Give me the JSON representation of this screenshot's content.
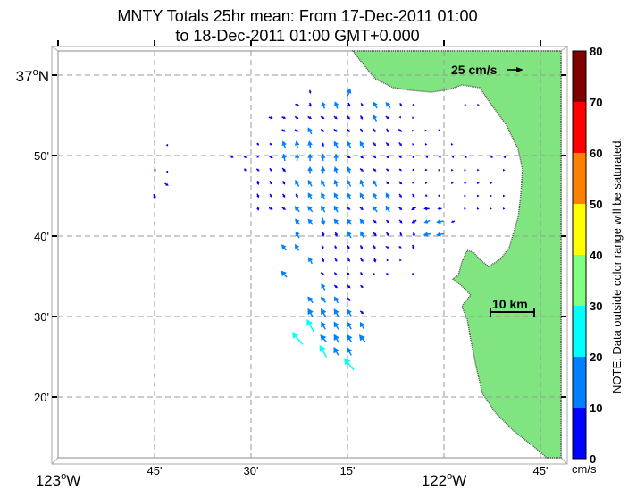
{
  "title": {
    "line1": "MNTY Totals 25hr mean: From 17-Dec-2011 01:00",
    "line2": "to 18-Dec-2011 01:00 GMT+0.000"
  },
  "axes": {
    "x_ticks": [
      {
        "lon_min": 0,
        "label": "123",
        "suffix": "W",
        "major": true
      },
      {
        "lon_min": 15,
        "label": "45'",
        "major": false
      },
      {
        "lon_min": 30,
        "label": "30'",
        "major": false
      },
      {
        "lon_min": 45,
        "label": "15'",
        "major": false
      },
      {
        "lon_min": 60,
        "label": "122",
        "suffix": "W",
        "major": true
      },
      {
        "lon_min": 75,
        "label": "45'",
        "major": false
      }
    ],
    "y_ticks": [
      {
        "lat_min": 60,
        "label": "37",
        "suffix": "N",
        "major": true
      },
      {
        "lat_min": 50,
        "label": "50'",
        "major": false
      },
      {
        "lat_min": 40,
        "label": "40'",
        "major": false
      },
      {
        "lat_min": 30,
        "label": "30'",
        "major": false
      },
      {
        "lat_min": 20,
        "label": "20'",
        "major": false
      }
    ],
    "degree_symbol": "o"
  },
  "legend": {
    "reference_label": "25 cm/s",
    "reference_speed": 25,
    "scale_bar_label": "10 km"
  },
  "colorbar": {
    "unit": "cm/s",
    "note": "NOTE: Data outside color range will be saturated.",
    "ticks": [
      "0",
      "10",
      "20",
      "30",
      "40",
      "50",
      "60",
      "70",
      "80"
    ],
    "colors": [
      "#0000ff",
      "#0080ff",
      "#00ffff",
      "#80ff80",
      "#ffff00",
      "#ff8000",
      "#ff0000",
      "#800000"
    ]
  },
  "colors": {
    "land": "#80e580",
    "coast": "#555555",
    "grid": "#999999"
  },
  "chart_data": {
    "type": "vector-field",
    "description_units": "lon in minutes east of 123W, lat in minutes north of 36N, speed cm/s, dir degrees toward (clockwise from N)",
    "lon_step": 2.014,
    "rows": [
      {
        "lat": 57.9,
        "lon0": 39.2,
        "s": [
          6,
          null,
          null,
          13
        ],
        "d": [
          170,
          0,
          0,
          20
        ]
      },
      {
        "lat": 56.3,
        "lon0": 37.2,
        "s": [
          7,
          7,
          12,
          12,
          7,
          6,
          12,
          12,
          6,
          1,
          null,
          null,
          null,
          1,
          1
        ],
        "d": [
          110,
          170,
          340,
          340,
          160,
          150,
          330,
          320,
          150,
          90,
          0,
          0,
          0,
          90,
          90
        ]
      },
      {
        "lat": 54.7,
        "lon0": 33.1,
        "s": [
          7,
          7,
          7,
          7,
          7,
          7,
          7,
          7,
          12,
          7,
          3,
          1
        ],
        "d": [
          100,
          110,
          120,
          120,
          120,
          130,
          140,
          150,
          330,
          130,
          150,
          90
        ]
      },
      {
        "lat": 53.1,
        "lon0": 35.1,
        "s": [
          7,
          7,
          12,
          7,
          7,
          7,
          7,
          7,
          7,
          7,
          2,
          2,
          2
        ],
        "d": [
          120,
          120,
          330,
          130,
          130,
          140,
          150,
          150,
          160,
          130,
          90,
          90,
          180
        ]
      },
      {
        "lat": 51.4,
        "lon0": 31.1,
        "s": [
          5,
          5,
          12,
          12,
          12,
          7,
          12,
          12,
          12,
          7,
          7,
          7,
          3,
          2,
          null,
          2
        ],
        "d": [
          150,
          120,
          340,
          350,
          350,
          340,
          330,
          330,
          330,
          140,
          140,
          140,
          90,
          90,
          0,
          90
        ]
      },
      {
        "lat": 49.8,
        "lon0": 27.1,
        "s": [
          5,
          5,
          3,
          7,
          12,
          12,
          12,
          12,
          12,
          7,
          7,
          6,
          6,
          5,
          4,
          4,
          4,
          3,
          4,
          null,
          4,
          4
        ],
        "d": [
          100,
          120,
          120,
          120,
          350,
          0,
          0,
          0,
          0,
          120,
          130,
          130,
          130,
          110,
          90,
          270,
          270,
          270,
          270,
          0,
          270,
          270
        ]
      },
      {
        "lat": 48.2,
        "lon0": 29.1,
        "s": [
          5,
          6,
          7,
          8,
          null,
          12,
          12,
          12,
          12,
          7,
          7,
          6,
          5,
          4,
          3,
          3,
          3,
          3,
          3,
          null,
          2
        ],
        "d": [
          150,
          130,
          140,
          140,
          0,
          0,
          0,
          340,
          340,
          130,
          130,
          130,
          130,
          120,
          110,
          90,
          90,
          90,
          90,
          0,
          90
        ]
      },
      {
        "lat": 46.6,
        "lon0": 31.1,
        "s": [
          7,
          7,
          7,
          12,
          12,
          12,
          12,
          12,
          12,
          12,
          7,
          7,
          3,
          3,
          null,
          4,
          4,
          4,
          4
        ],
        "d": [
          170,
          150,
          150,
          330,
          330,
          330,
          340,
          330,
          340,
          330,
          130,
          130,
          110,
          90,
          0,
          90,
          90,
          90,
          90
        ]
      },
      {
        "lat": 45.0,
        "lon0": 31.1,
        "s": [
          7,
          7,
          7,
          7,
          12,
          12,
          12,
          12,
          12,
          12,
          12,
          7,
          7,
          4,
          4,
          null,
          3,
          3,
          3,
          3
        ],
        "d": [
          160,
          150,
          150,
          150,
          330,
          330,
          330,
          330,
          330,
          330,
          330,
          150,
          150,
          130,
          110,
          0,
          90,
          90,
          90,
          90
        ]
      },
      {
        "lat": 43.4,
        "lon0": 31.1,
        "s": [
          7,
          7,
          7,
          12,
          12,
          12,
          12,
          7,
          7,
          12,
          12,
          7,
          9,
          9,
          7,
          null,
          2,
          2,
          2,
          2
        ],
        "d": [
          170,
          110,
          120,
          320,
          320,
          330,
          330,
          120,
          130,
          320,
          330,
          130,
          240,
          270,
          270,
          0,
          90,
          90,
          90,
          90
        ]
      },
      {
        "lat": 41.8,
        "lon0": 37.2,
        "s": [
          12,
          12,
          12,
          12,
          12,
          12,
          7,
          7,
          7,
          9,
          10,
          12,
          6
        ],
        "d": [
          320,
          320,
          170,
          320,
          320,
          320,
          130,
          130,
          140,
          240,
          250,
          260,
          250
        ]
      },
      {
        "lat": 40.2,
        "lon0": 37.2,
        "s": [
          12,
          null,
          8,
          8,
          12,
          12,
          8,
          8,
          6,
          8,
          12,
          12
        ],
        "d": [
          330,
          0,
          170,
          160,
          330,
          330,
          140,
          140,
          160,
          170,
          260,
          260
        ]
      },
      {
        "lat": 38.6,
        "lon0": 35.1,
        "s": [
          12,
          12,
          null,
          7,
          6,
          7,
          7,
          7,
          6,
          5,
          8
        ],
        "d": [
          320,
          330,
          0,
          160,
          160,
          150,
          150,
          150,
          120,
          120,
          160
        ]
      },
      {
        "lat": 37.0,
        "lon0": 39.2,
        "s": [
          12,
          7,
          6,
          6,
          7,
          8,
          3,
          3
        ],
        "d": [
          330,
          160,
          150,
          150,
          140,
          170,
          90,
          90
        ]
      },
      {
        "lat": 35.3,
        "lon0": 35.1,
        "s": [
          14,
          null,
          null,
          7,
          6,
          5,
          6,
          2,
          4,
          null,
          4
        ],
        "d": [
          320,
          0,
          0,
          130,
          140,
          140,
          150,
          90,
          90,
          0,
          90
        ]
      },
      {
        "lat": 33.7,
        "lon0": 41.2,
        "s": [
          12,
          7,
          7,
          6
        ],
        "d": [
          330,
          130,
          130,
          130
        ]
      },
      {
        "lat": 32.1,
        "lon0": 39.2,
        "s": [
          13,
          12,
          12,
          7
        ],
        "d": [
          320,
          320,
          330,
          140
        ]
      },
      {
        "lat": 30.5,
        "lon0": 39.2,
        "s": [
          15,
          15,
          14,
          13,
          7
        ],
        "d": [
          330,
          330,
          330,
          330,
          130
        ]
      },
      {
        "lat": 28.9,
        "lon0": 39.2,
        "s": [
          22,
          14,
          14,
          14,
          13
        ],
        "d": [
          330,
          330,
          330,
          330,
          330
        ]
      },
      {
        "lat": 27.3,
        "lon0": 37.2,
        "s": [
          26,
          null,
          15,
          15,
          15,
          15
        ],
        "d": [
          320,
          0,
          320,
          330,
          330,
          320
        ]
      },
      {
        "lat": 25.7,
        "lon0": 41.2,
        "s": [
          22,
          15,
          15
        ],
        "d": [
          330,
          330,
          330
        ]
      },
      {
        "lat": 24.1,
        "lon0": 45.2,
        "s": [
          24
        ],
        "d": [
          320
        ]
      }
    ],
    "isolated": [
      {
        "lon": 16.9,
        "lat": 51.3,
        "s": 3,
        "d": 270
      },
      {
        "lon": 15.0,
        "lat": 48.2,
        "s": 3,
        "d": 270
      },
      {
        "lon": 16.9,
        "lat": 48.0,
        "s": 3,
        "d": 270
      },
      {
        "lon": 16.9,
        "lat": 46.4,
        "s": 7,
        "d": 120
      },
      {
        "lon": 15.0,
        "lat": 44.9,
        "s": 8,
        "d": 160
      }
    ]
  }
}
